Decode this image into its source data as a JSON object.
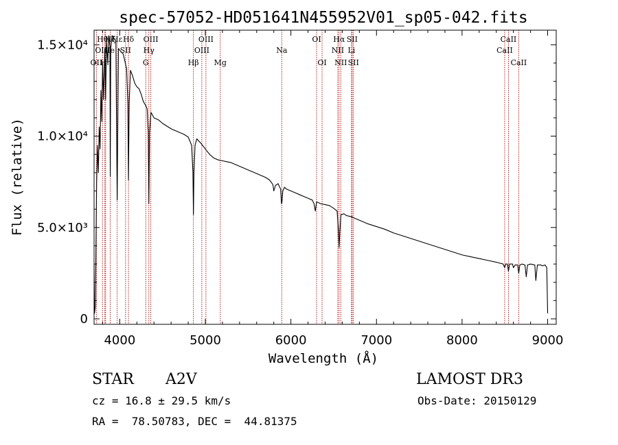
{
  "chart_data": {
    "type": "line",
    "title": "spec-57052-HD051641N455952V01_sp05-042.fits",
    "xlabel": "Wavelength (Å)",
    "ylabel": "Flux (relative)",
    "xlim": [
      3700,
      9100
    ],
    "ylim": [
      -300,
      15800
    ],
    "x_ticks": [
      {
        "value": 4000,
        "label": "4000"
      },
      {
        "value": 5000,
        "label": "5000"
      },
      {
        "value": 6000,
        "label": "6000"
      },
      {
        "value": 7000,
        "label": "7000"
      },
      {
        "value": 8000,
        "label": "8000"
      },
      {
        "value": 9000,
        "label": "9000"
      }
    ],
    "y_ticks": [
      {
        "value": 0,
        "label": "0"
      },
      {
        "value": 5000,
        "label": "5.0×10³"
      },
      {
        "value": 10000,
        "label": "1.0×10⁴"
      },
      {
        "value": 15000,
        "label": "1.5×10⁴"
      }
    ],
    "series": [
      {
        "name": "spectrum",
        "points": [
          [
            3700,
            3000
          ],
          [
            3705,
            300
          ],
          [
            3715,
            700
          ],
          [
            3730,
            7500
          ],
          [
            3740,
            9500
          ],
          [
            3750,
            8000
          ],
          [
            3760,
            10500
          ],
          [
            3770,
            9300
          ],
          [
            3780,
            12500
          ],
          [
            3790,
            10800
          ],
          [
            3800,
            14000
          ],
          [
            3810,
            12000
          ],
          [
            3825,
            14800
          ],
          [
            3835,
            12000
          ],
          [
            3845,
            15200
          ],
          [
            3860,
            14000
          ],
          [
            3870,
            15500
          ],
          [
            3885,
            14900
          ],
          [
            3889,
            7800
          ],
          [
            3895,
            14800
          ],
          [
            3910,
            15500
          ],
          [
            3925,
            15400
          ],
          [
            3940,
            15300
          ],
          [
            3955,
            15200
          ],
          [
            3963,
            10300
          ],
          [
            3970,
            6500
          ],
          [
            3977,
            10500
          ],
          [
            3985,
            14800
          ],
          [
            4000,
            14700
          ],
          [
            4020,
            14600
          ],
          [
            4040,
            14500
          ],
          [
            4060,
            14100
          ],
          [
            4080,
            13700
          ],
          [
            4095,
            11800
          ],
          [
            4102,
            7600
          ],
          [
            4110,
            11800
          ],
          [
            4125,
            13600
          ],
          [
            4150,
            13300
          ],
          [
            4175,
            12900
          ],
          [
            4200,
            12700
          ],
          [
            4225,
            12600
          ],
          [
            4250,
            12300
          ],
          [
            4275,
            11900
          ],
          [
            4300,
            11700
          ],
          [
            4320,
            11500
          ],
          [
            4333,
            10200
          ],
          [
            4340,
            6300
          ],
          [
            4348,
            10200
          ],
          [
            4365,
            11300
          ],
          [
            4400,
            11000
          ],
          [
            4450,
            10900
          ],
          [
            4500,
            10700
          ],
          [
            4550,
            10550
          ],
          [
            4600,
            10400
          ],
          [
            4650,
            10300
          ],
          [
            4700,
            10200
          ],
          [
            4750,
            10100
          ],
          [
            4800,
            9950
          ],
          [
            4840,
            9500
          ],
          [
            4855,
            8000
          ],
          [
            4861,
            5700
          ],
          [
            4867,
            8000
          ],
          [
            4880,
            9500
          ],
          [
            4900,
            9850
          ],
          [
            4950,
            9600
          ],
          [
            5000,
            9300
          ],
          [
            5050,
            9000
          ],
          [
            5100,
            8800
          ],
          [
            5150,
            8700
          ],
          [
            5200,
            8650
          ],
          [
            5250,
            8600
          ],
          [
            5300,
            8550
          ],
          [
            5350,
            8450
          ],
          [
            5400,
            8350
          ],
          [
            5450,
            8250
          ],
          [
            5500,
            8150
          ],
          [
            5550,
            8050
          ],
          [
            5600,
            7950
          ],
          [
            5650,
            7850
          ],
          [
            5700,
            7750
          ],
          [
            5750,
            7600
          ],
          [
            5790,
            7350
          ],
          [
            5800,
            7000
          ],
          [
            5820,
            7300
          ],
          [
            5850,
            7400
          ],
          [
            5880,
            7100
          ],
          [
            5890,
            6300
          ],
          [
            5896,
            6400
          ],
          [
            5905,
            7000
          ],
          [
            5925,
            7200
          ],
          [
            5950,
            7100
          ],
          [
            6000,
            7000
          ],
          [
            6050,
            6900
          ],
          [
            6100,
            6800
          ],
          [
            6150,
            6700
          ],
          [
            6200,
            6600
          ],
          [
            6250,
            6500
          ],
          [
            6270,
            6300
          ],
          [
            6285,
            5900
          ],
          [
            6300,
            6400
          ],
          [
            6350,
            6300
          ],
          [
            6400,
            6250
          ],
          [
            6450,
            6200
          ],
          [
            6500,
            6050
          ],
          [
            6540,
            5900
          ],
          [
            6555,
            4800
          ],
          [
            6563,
            3900
          ],
          [
            6572,
            4800
          ],
          [
            6585,
            5700
          ],
          [
            6620,
            5750
          ],
          [
            6650,
            5650
          ],
          [
            6700,
            5600
          ],
          [
            6750,
            5500
          ],
          [
            6800,
            5400
          ],
          [
            6900,
            5200
          ],
          [
            7000,
            5050
          ],
          [
            7100,
            4900
          ],
          [
            7200,
            4700
          ],
          [
            7300,
            4550
          ],
          [
            7400,
            4400
          ],
          [
            7500,
            4250
          ],
          [
            7600,
            4100
          ],
          [
            7700,
            3950
          ],
          [
            7800,
            3800
          ],
          [
            7900,
            3650
          ],
          [
            8000,
            3500
          ],
          [
            8100,
            3400
          ],
          [
            8200,
            3300
          ],
          [
            8300,
            3200
          ],
          [
            8400,
            3100
          ],
          [
            8480,
            3000
          ],
          [
            8498,
            2800
          ],
          [
            8510,
            3000
          ],
          [
            8530,
            3000
          ],
          [
            8542,
            2600
          ],
          [
            8555,
            3000
          ],
          [
            8590,
            3000
          ],
          [
            8600,
            2800
          ],
          [
            8620,
            2950
          ],
          [
            8650,
            2950
          ],
          [
            8662,
            2500
          ],
          [
            8675,
            2950
          ],
          [
            8700,
            3000
          ],
          [
            8735,
            2950
          ],
          [
            8750,
            2300
          ],
          [
            8765,
            2950
          ],
          [
            8800,
            3000
          ],
          [
            8850,
            2950
          ],
          [
            8862,
            2100
          ],
          [
            8880,
            2950
          ],
          [
            8920,
            2950
          ],
          [
            8940,
            2900
          ],
          [
            8970,
            2950
          ],
          [
            8990,
            2800
          ],
          [
            9000,
            300
          ]
        ]
      }
    ],
    "lines": [
      {
        "label": "OII",
        "wave": 3727,
        "row": 3
      },
      {
        "label": "Hθ",
        "wave": 3798,
        "row": 1
      },
      {
        "label": "OIIIe",
        "wave": 3826,
        "row": 2
      },
      {
        "label": "Hη",
        "wave": 3835,
        "row": 3
      },
      {
        "label": "Hζ",
        "wave": 3889,
        "row": 1
      },
      {
        "label": "Hε",
        "wave": 3970,
        "row": 1
      },
      {
        "label": "SII",
        "wave": 4068,
        "row": 2
      },
      {
        "label": "Hδ",
        "wave": 4102,
        "row": 1
      },
      {
        "label": "OIII",
        "wave": 4363,
        "row": 1
      },
      {
        "label": "Hγ",
        "wave": 4340,
        "row": 2
      },
      {
        "label": "G",
        "wave": 4304,
        "row": 3
      },
      {
        "label": "Hβ",
        "wave": 4861,
        "row": 3
      },
      {
        "label": "OIII",
        "wave": 4959,
        "row": 2
      },
      {
        "label": "OIII",
        "wave": 5007,
        "row": 1
      },
      {
        "label": "Mg",
        "wave": 5175,
        "row": 3
      },
      {
        "label": "Na",
        "wave": 5893,
        "row": 2
      },
      {
        "label": "OI",
        "wave": 6300,
        "row": 1
      },
      {
        "label": "OI",
        "wave": 6364,
        "row": 3
      },
      {
        "label": "NII",
        "wave": 6548,
        "row": 2
      },
      {
        "label": "Hα",
        "wave": 6563,
        "row": 1
      },
      {
        "label": "NII",
        "wave": 6583,
        "row": 3
      },
      {
        "label": "SII",
        "wave": 6716,
        "row": 1
      },
      {
        "label": "Li",
        "wave": 6708,
        "row": 2
      },
      {
        "label": "SII",
        "wave": 6731,
        "row": 3
      },
      {
        "label": "CaII",
        "wave": 8498,
        "row": 2
      },
      {
        "label": "CaII",
        "wave": 8542,
        "row": 1
      },
      {
        "label": "CaII",
        "wave": 8662,
        "row": 3
      }
    ]
  },
  "info": {
    "class": "STAR",
    "subclass": "A2V",
    "survey": "LAMOST DR3",
    "cz": "cz = 16.8 ± 29.5 km/s",
    "obs_date": "Obs-Date: 20150129",
    "coords": "RA =  78.50783, DEC =  44.81375"
  },
  "colors": {
    "line_marker": "#b40000",
    "spectrum": "#000000",
    "axis": "#000000"
  }
}
